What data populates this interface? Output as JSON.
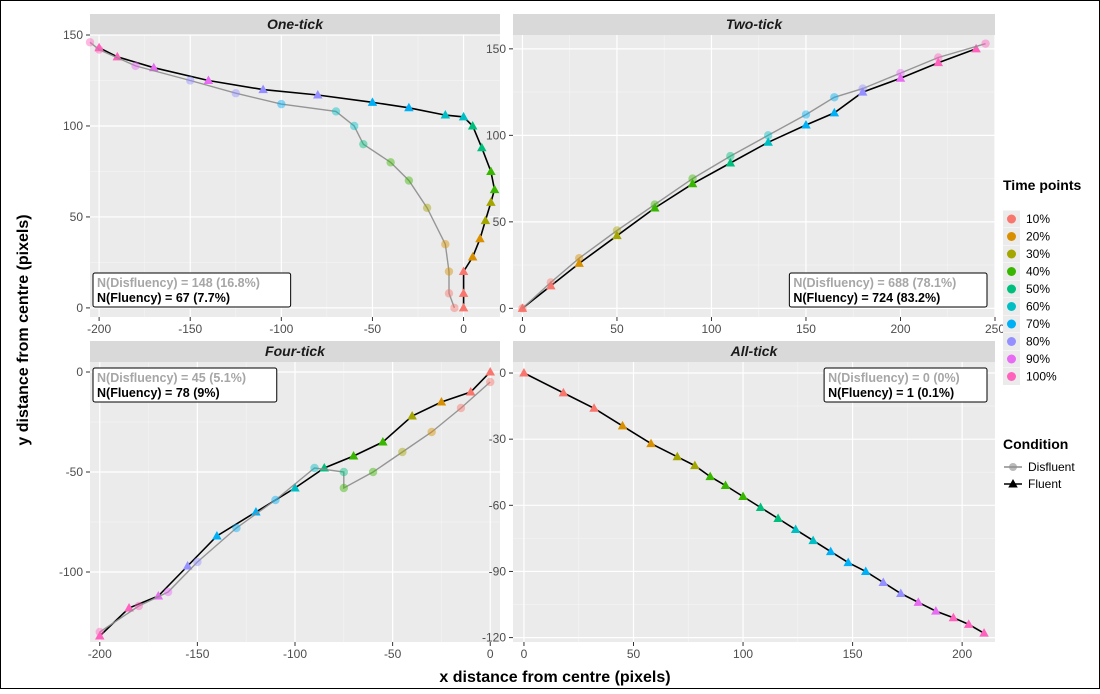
{
  "figure": {
    "xlabel": "x distance from centre (pixels)",
    "ylabel": "y distance from centre (pixels)"
  },
  "legends": {
    "time_title": "Time points",
    "time_items": [
      {
        "label": "10%",
        "color": "#F8766D"
      },
      {
        "label": "20%",
        "color": "#D89000"
      },
      {
        "label": "30%",
        "color": "#A3A500"
      },
      {
        "label": "40%",
        "color": "#39B600"
      },
      {
        "label": "50%",
        "color": "#00BF7D"
      },
      {
        "label": "60%",
        "color": "#00BFC4"
      },
      {
        "label": "70%",
        "color": "#00B0F6"
      },
      {
        "label": "80%",
        "color": "#9590FF"
      },
      {
        "label": "90%",
        "color": "#E76BF3"
      },
      {
        "label": "100%",
        "color": "#FF62BC"
      }
    ],
    "condition_title": "Condition",
    "condition_items": [
      {
        "label": "Disfluent",
        "marker": "circle",
        "line_color": "#8c8c8c"
      },
      {
        "label": "Fluent",
        "marker": "triangle",
        "line_color": "#000000"
      }
    ]
  },
  "chart_data": [
    {
      "type": "line",
      "panel": "One-tick",
      "title": "One-tick",
      "xlim": [
        -205,
        20
      ],
      "ylim": [
        -5,
        150
      ],
      "xticks": [
        -200,
        -150,
        -100,
        -50,
        0
      ],
      "yticks": [
        0,
        50,
        100,
        150
      ],
      "annotation": {
        "disfluency": "N(Disfluency) = 148 (16.8%)",
        "fluency": "N(Fluency) = 67 (7.7%)"
      },
      "series": [
        {
          "name": "Fluent",
          "points": [
            [
              0,
              0
            ],
            [
              0,
              8
            ],
            [
              0,
              20
            ],
            [
              5,
              28
            ],
            [
              9,
              38
            ],
            [
              12,
              48
            ],
            [
              15,
              58
            ],
            [
              17,
              65
            ],
            [
              15,
              75
            ],
            [
              10,
              88
            ],
            [
              5,
              100
            ],
            [
              0,
              105
            ],
            [
              -10,
              106
            ],
            [
              -30,
              110
            ],
            [
              -50,
              113
            ],
            [
              -80,
              117
            ],
            [
              -110,
              120
            ],
            [
              -140,
              125
            ],
            [
              -170,
              132
            ],
            [
              -190,
              138
            ],
            [
              -200,
              143
            ]
          ]
        },
        {
          "name": "Disfluent",
          "points": [
            [
              -5,
              0
            ],
            [
              -8,
              8
            ],
            [
              -8,
              20
            ],
            [
              -10,
              35
            ],
            [
              -20,
              55
            ],
            [
              -30,
              70
            ],
            [
              -40,
              80
            ],
            [
              -55,
              90
            ],
            [
              -60,
              100
            ],
            [
              -70,
              108
            ],
            [
              -100,
              112
            ],
            [
              -125,
              118
            ],
            [
              -150,
              125
            ],
            [
              -180,
              133
            ],
            [
              -200,
              142
            ],
            [
              -205,
              146
            ]
          ]
        }
      ]
    },
    {
      "type": "line",
      "panel": "Two-tick",
      "title": "Two-tick",
      "xlim": [
        -5,
        250
      ],
      "ylim": [
        -5,
        158
      ],
      "xticks": [
        0,
        50,
        100,
        150,
        200,
        250
      ],
      "yticks": [
        0,
        50,
        100,
        150
      ],
      "annotation": {
        "disfluency": "N(Disfluency) = 688 (78.1%)",
        "fluency": "N(Fluency) = 724 (83.2%)"
      },
      "series": [
        {
          "name": "Fluent",
          "points": [
            [
              0,
              0
            ],
            [
              15,
              13
            ],
            [
              30,
              26
            ],
            [
              50,
              42
            ],
            [
              70,
              58
            ],
            [
              90,
              72
            ],
            [
              110,
              84
            ],
            [
              130,
              96
            ],
            [
              150,
              106
            ],
            [
              165,
              113
            ],
            [
              180,
              125
            ],
            [
              200,
              133
            ],
            [
              220,
              142
            ],
            [
              240,
              150
            ]
          ]
        },
        {
          "name": "Disfluent",
          "points": [
            [
              0,
              0
            ],
            [
              15,
              15
            ],
            [
              30,
              29
            ],
            [
              50,
              45
            ],
            [
              70,
              60
            ],
            [
              90,
              75
            ],
            [
              110,
              88
            ],
            [
              130,
              100
            ],
            [
              150,
              112
            ],
            [
              165,
              122
            ],
            [
              180,
              127
            ],
            [
              200,
              136
            ],
            [
              220,
              145
            ],
            [
              245,
              153
            ]
          ]
        }
      ]
    },
    {
      "type": "line",
      "panel": "Four-tick",
      "title": "Four-tick",
      "xlim": [
        -205,
        5
      ],
      "ylim": [
        -135,
        5
      ],
      "xticks": [
        -200,
        -150,
        -100,
        -50,
        0
      ],
      "yticks": [
        -100,
        -50,
        0
      ],
      "annotation": {
        "disfluency": "N(Disfluency) = 45 (5.1%)",
        "fluency": "N(Fluency) = 78 (9%)"
      },
      "series": [
        {
          "name": "Fluent",
          "points": [
            [
              0,
              0
            ],
            [
              -10,
              -10
            ],
            [
              -25,
              -15
            ],
            [
              -40,
              -22
            ],
            [
              -55,
              -35
            ],
            [
              -70,
              -42
            ],
            [
              -85,
              -48
            ],
            [
              -100,
              -58
            ],
            [
              -120,
              -70
            ],
            [
              -140,
              -82
            ],
            [
              -155,
              -97
            ],
            [
              -170,
              -112
            ],
            [
              -185,
              -118
            ],
            [
              -200,
              -132
            ]
          ]
        },
        {
          "name": "Disfluent",
          "points": [
            [
              0,
              -5
            ],
            [
              -15,
              -18
            ],
            [
              -30,
              -30
            ],
            [
              -45,
              -40
            ],
            [
              -60,
              -50
            ],
            [
              -75,
              -58
            ],
            [
              -75,
              -50
            ],
            [
              -90,
              -48
            ],
            [
              -110,
              -64
            ],
            [
              -130,
              -78
            ],
            [
              -150,
              -95
            ],
            [
              -165,
              -110
            ],
            [
              -180,
              -117
            ],
            [
              -200,
              -130
            ]
          ]
        }
      ]
    },
    {
      "type": "line",
      "panel": "All-tick",
      "title": "All-tick",
      "xlim": [
        -5,
        215
      ],
      "ylim": [
        -122,
        5
      ],
      "xticks": [
        0,
        50,
        100,
        150,
        200
      ],
      "yticks": [
        -120,
        -90,
        -60,
        -30,
        0
      ],
      "annotation": {
        "disfluency": "N(Disfluency) = 0 (0%)",
        "fluency": "N(Fluency) = 1 (0.1%)"
      },
      "series": [
        {
          "name": "Fluent",
          "points": [
            [
              0,
              0
            ],
            [
              18,
              -9
            ],
            [
              32,
              -16
            ],
            [
              45,
              -24
            ],
            [
              58,
              -32
            ],
            [
              70,
              -38
            ],
            [
              78,
              -42
            ],
            [
              85,
              -47
            ],
            [
              92,
              -51
            ],
            [
              100,
              -56
            ],
            [
              108,
              -61
            ],
            [
              116,
              -66
            ],
            [
              124,
              -71
            ],
            [
              132,
              -76
            ],
            [
              140,
              -81
            ],
            [
              148,
              -86
            ],
            [
              156,
              -90
            ],
            [
              164,
              -95
            ],
            [
              172,
              -100
            ],
            [
              180,
              -104
            ],
            [
              188,
              -108
            ],
            [
              196,
              -111
            ],
            [
              203,
              -114
            ],
            [
              210,
              -118
            ]
          ]
        }
      ]
    }
  ]
}
